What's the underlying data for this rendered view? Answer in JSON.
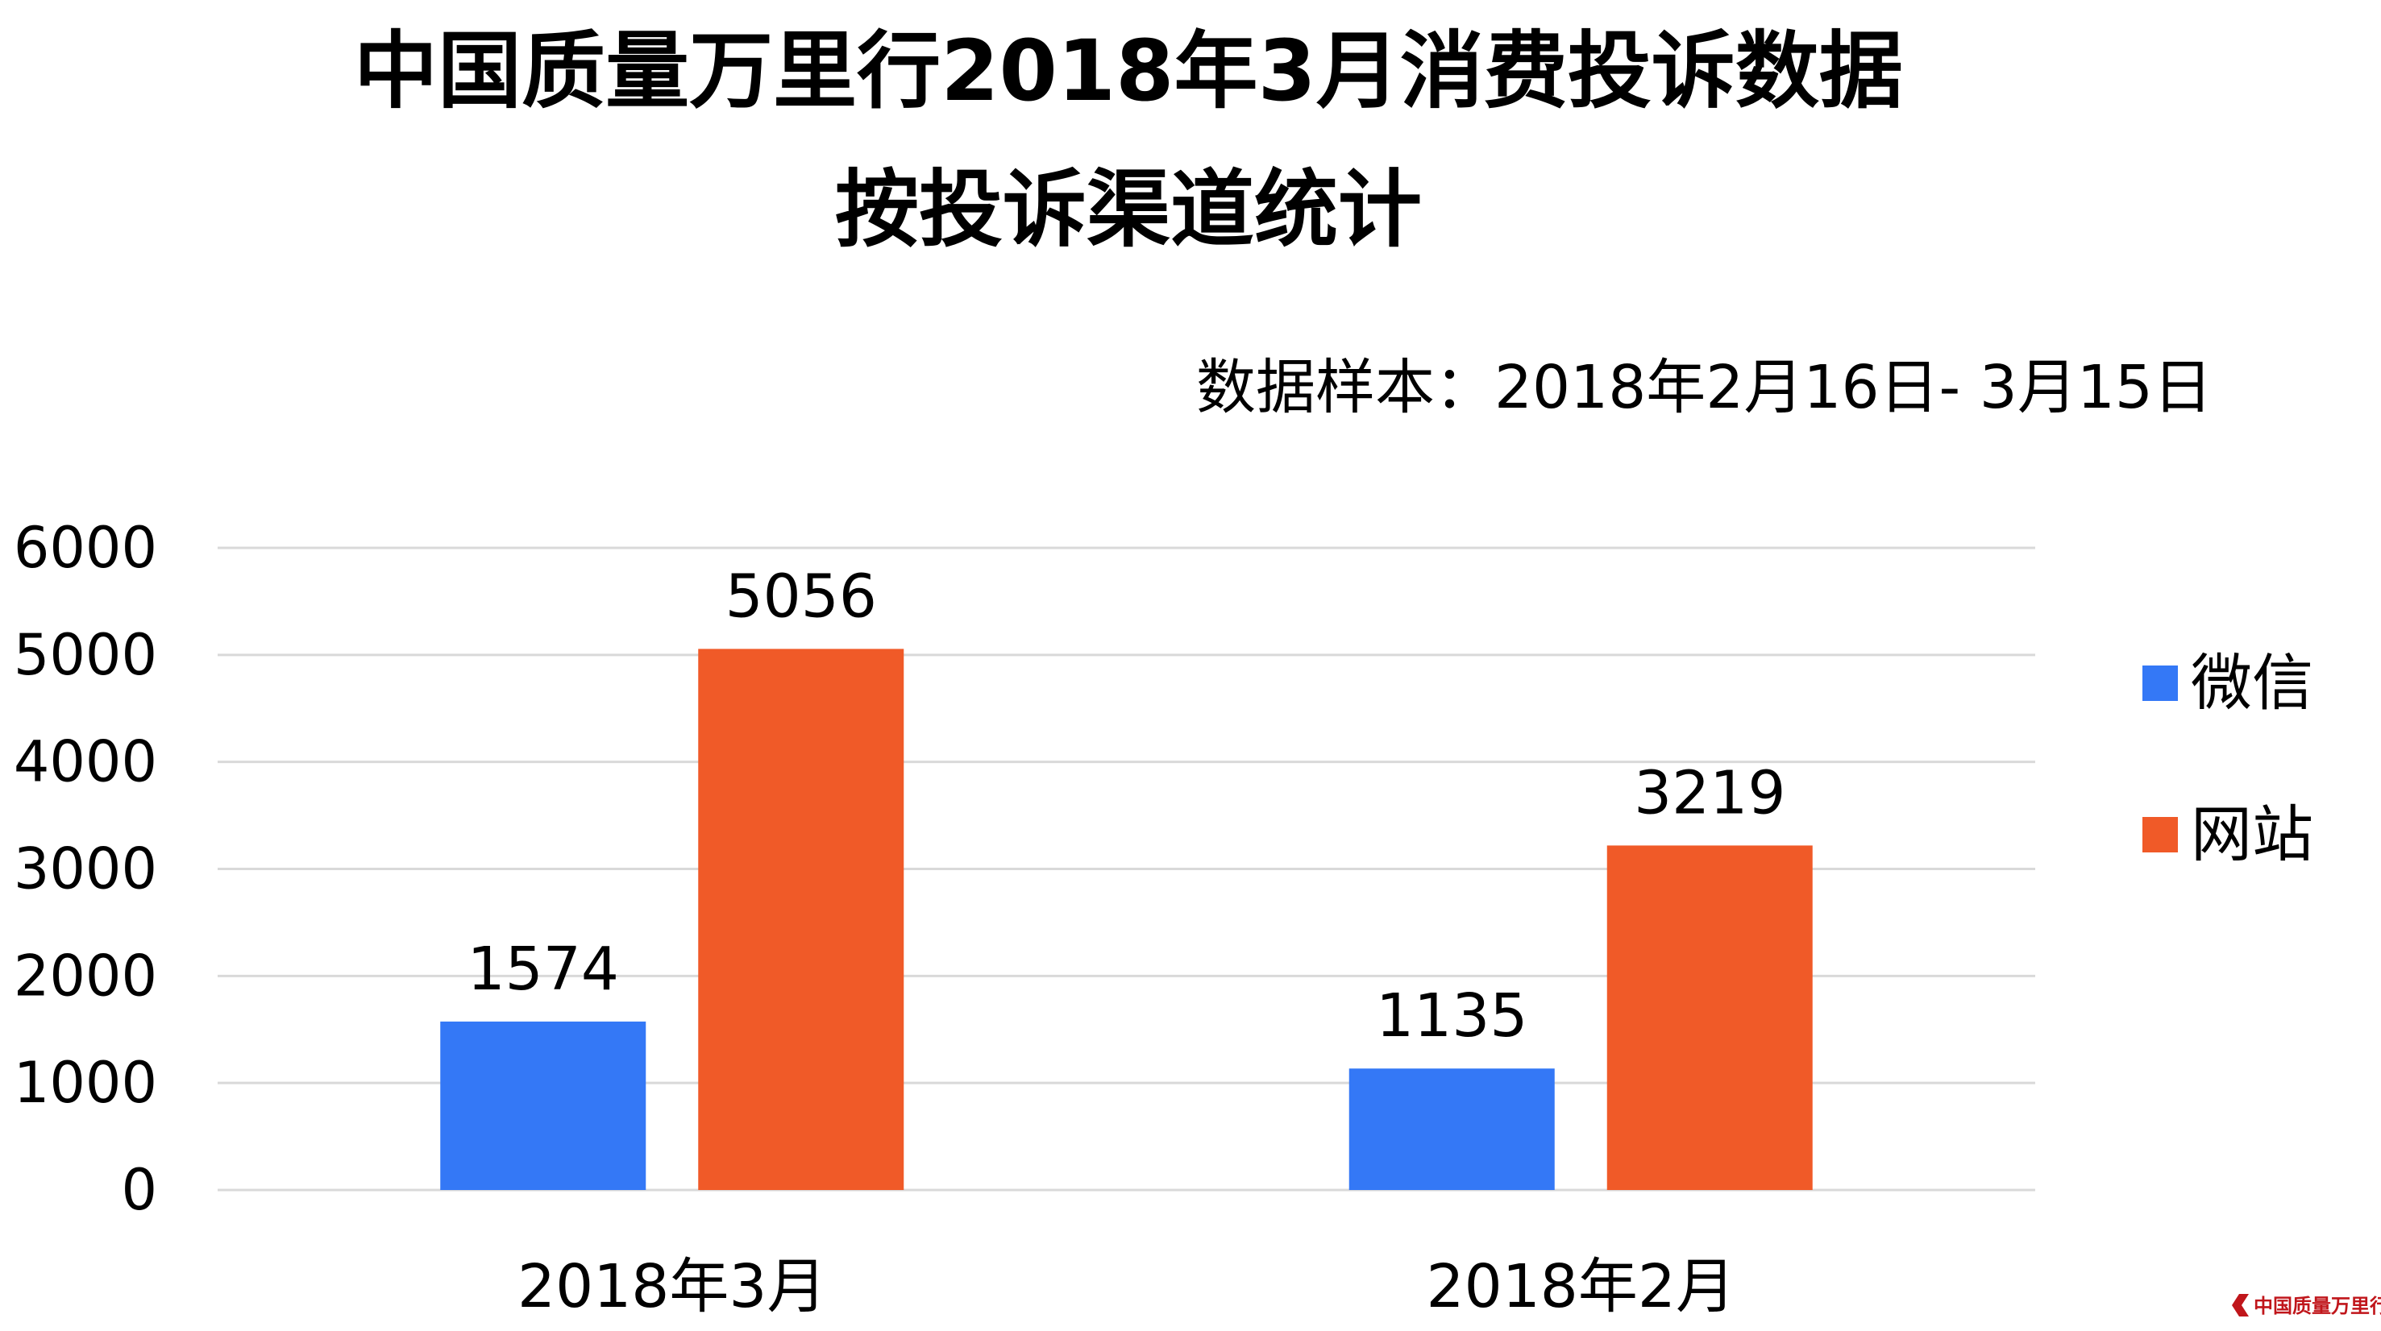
{
  "chart_data": {
    "type": "bar",
    "title_line1": "中国质量万里行2018年3月消费投诉数据",
    "title_line2": "按投诉渠道统计",
    "subtitle": "数据样本：2018年2月16日- 3月15日",
    "categories": [
      "2018年3月",
      "2018年2月"
    ],
    "series": [
      {
        "name": "微信",
        "values": [
          1574,
          1135
        ]
      },
      {
        "name": "网站",
        "values": [
          5056,
          3219
        ]
      }
    ],
    "ylim": [
      0,
      6000
    ],
    "yticks": [
      0,
      1000,
      2000,
      3000,
      4000,
      5000,
      6000
    ],
    "grid": true,
    "legend_position": "right"
  },
  "colors": {
    "series": [
      "#3478f6",
      "#f05a28"
    ],
    "grid": "#d9d9d9",
    "text": "#111111",
    "watermark": "#c0161b"
  },
  "watermark": {
    "text": "中国质量万里行",
    "icon": "quality-logo-icon"
  }
}
